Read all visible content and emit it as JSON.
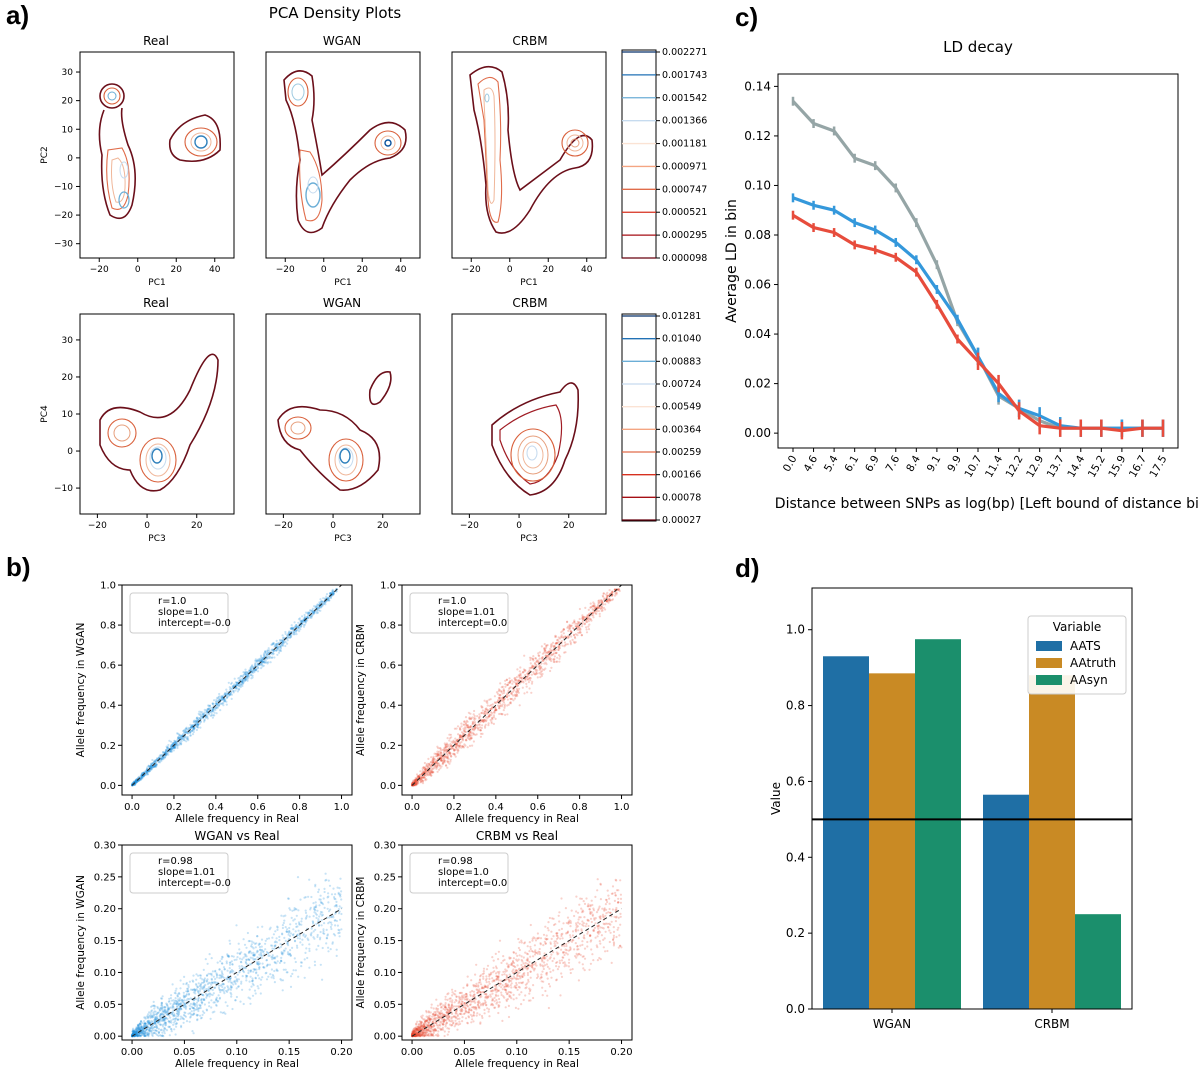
{
  "panels": {
    "a": {
      "label": "a)",
      "title": "PCA Density Plots",
      "subplot_titles": [
        "Real",
        "WGAN",
        "CRBM"
      ],
      "top": {
        "xlabel": "PC1",
        "ylabel": "PC2",
        "xticks": [
          "−20",
          "0",
          "20",
          "40"
        ],
        "yticks": [
          "30",
          "20",
          "10",
          "0",
          "−10",
          "−20",
          "−30"
        ],
        "colorbar": [
          "0.002271",
          "0.001743",
          "0.001542",
          "0.001366",
          "0.001181",
          "0.000971",
          "0.000747",
          "0.000521",
          "0.000295",
          "0.000098"
        ]
      },
      "bottom": {
        "xlabel": "PC3",
        "ylabel": "PC4",
        "xticks": [
          "−20",
          "0",
          "20"
        ],
        "yticks": [
          "30",
          "20",
          "10",
          "0",
          "−10"
        ],
        "colorbar": [
          "0.01281",
          "0.01040",
          "0.00883",
          "0.00724",
          "0.00549",
          "0.00364",
          "0.00259",
          "0.00166",
          "0.00078",
          "0.00027"
        ]
      }
    },
    "b": {
      "label": "b)",
      "plots": [
        {
          "ylabel": "Allele frequency in WGAN",
          "xlabel": "Allele frequency in Real",
          "title": "",
          "stats": [
            "r=1.0",
            "slope=1.0",
            "intercept=-0.0"
          ],
          "xticks": [
            "0.0",
            "0.2",
            "0.4",
            "0.6",
            "0.8",
            "1.0"
          ],
          "yticks": [
            "0.0",
            "0.2",
            "0.4",
            "0.6",
            "0.8",
            "1.0"
          ],
          "color": "#1f8fdc"
        },
        {
          "ylabel": "Allele frequency in CRBM",
          "xlabel": "Allele frequency in Real",
          "title": "",
          "stats": [
            "r=1.0",
            "slope=1.01",
            "intercept=0.0"
          ],
          "xticks": [
            "0.0",
            "0.2",
            "0.4",
            "0.6",
            "0.8",
            "1.0"
          ],
          "yticks": [
            "0.0",
            "0.2",
            "0.4",
            "0.6",
            "0.8",
            "1.0"
          ],
          "color": "#e8462e"
        },
        {
          "ylabel": "Allele frequency in WGAN",
          "xlabel": "Allele frequency in Real",
          "title": "WGAN vs Real",
          "stats": [
            "r=0.98",
            "slope=1.01",
            "intercept=-0.0"
          ],
          "xticks": [
            "0.00",
            "0.05",
            "0.10",
            "0.15",
            "0.20"
          ],
          "yticks": [
            "0.00",
            "0.05",
            "0.10",
            "0.15",
            "0.20",
            "0.25",
            "0.30"
          ],
          "color": "#1f8fdc"
        },
        {
          "ylabel": "Allele frequency in CRBM",
          "xlabel": "Allele frequency in Real",
          "title": "CRBM vs Real",
          "stats": [
            "r=0.98",
            "slope=1.0",
            "intercept=0.0"
          ],
          "xticks": [
            "0.00",
            "0.05",
            "0.10",
            "0.15",
            "0.20"
          ],
          "yticks": [
            "0.00",
            "0.05",
            "0.10",
            "0.15",
            "0.20",
            "0.25",
            "0.30"
          ],
          "color": "#e8462e"
        }
      ]
    },
    "c": {
      "label": "c)"
    },
    "d": {
      "label": "d)"
    }
  },
  "chart_data": [
    {
      "type": "line",
      "title": "LD decay",
      "xlabel": "Distance between SNPs as log(bp) [Left bound of distance bin]",
      "ylabel": "Average LD in bin",
      "categories": [
        "0.0",
        "4.6",
        "5.4",
        "6.1",
        "6.9",
        "7.6",
        "8.4",
        "9.1",
        "9.9",
        "10.7",
        "11.4",
        "12.2",
        "12.9",
        "13.7",
        "14.4",
        "15.2",
        "15.9",
        "16.7",
        "17.5"
      ],
      "ylim": [
        -0.006,
        0.145
      ],
      "yticks": [
        0.0,
        0.02,
        0.04,
        0.06,
        0.08,
        0.1,
        0.12,
        0.14
      ],
      "series": [
        {
          "color": "#95a5a6",
          "values": [
            0.134,
            0.125,
            0.122,
            0.111,
            0.108,
            0.099,
            0.085,
            0.068,
            0.045,
            0.031,
            0.015,
            0.01,
            0.005,
            0.002,
            0.002,
            0.002,
            0.002,
            0.002,
            0.002
          ]
        },
        {
          "color": "#3498db",
          "values": [
            0.095,
            0.092,
            0.09,
            0.085,
            0.082,
            0.077,
            0.07,
            0.058,
            0.046,
            0.031,
            0.016,
            0.01,
            0.007,
            0.003,
            0.002,
            0.002,
            0.002,
            0.002,
            0.002
          ]
        },
        {
          "color": "#e74c3c",
          "values": [
            0.088,
            0.083,
            0.081,
            0.076,
            0.074,
            0.071,
            0.065,
            0.052,
            0.038,
            0.029,
            0.02,
            0.009,
            0.003,
            0.002,
            0.002,
            0.002,
            0.001,
            0.002,
            0.002
          ]
        }
      ]
    },
    {
      "type": "bar",
      "categories": [
        "WGAN",
        "CRBM"
      ],
      "ylabel": "Value",
      "xlabel": "",
      "ylim": [
        0.0,
        1.11
      ],
      "yticks": [
        0.0,
        0.2,
        0.4,
        0.6,
        0.8,
        1.0
      ],
      "legend_title": "Variable",
      "legend_position": "top-right",
      "reference_line": 0.5,
      "series": [
        {
          "name": "AATS",
          "color": "#1f6fa5",
          "values": [
            0.93,
            0.565
          ]
        },
        {
          "name": "AAtruth",
          "color": "#c98a24",
          "values": [
            0.885,
            0.88
          ]
        },
        {
          "name": "AAsyn",
          "color": "#1b8f6c",
          "values": [
            0.975,
            0.25
          ]
        }
      ]
    }
  ]
}
